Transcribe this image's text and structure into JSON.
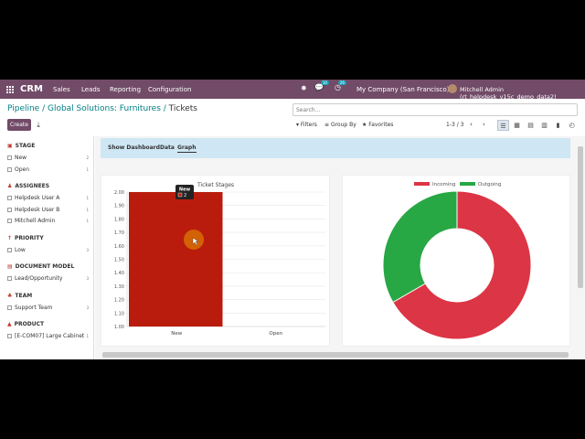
{
  "navbar": {
    "brand": "CRM",
    "menu": [
      "Sales",
      "Leads",
      "Reporting",
      "Configuration"
    ],
    "chat_badge": "10",
    "activity_badge": "26",
    "company": "My Company (San Francisco)",
    "user": "Mitchell Admin (rt_helpdesk_v15c_demo_data2)",
    "bg_color": "#714b67"
  },
  "breadcrumb": {
    "link": "Pipeline / Global Solutions: Furnitures /",
    "current": "Tickets"
  },
  "search": {
    "placeholder": "Search..."
  },
  "toolbar": {
    "create_label": "Create",
    "download_icon": "download-icon",
    "filters": "Filters",
    "group_by": "Group By",
    "favorites": "Favorites",
    "pager": "1-3 / 3",
    "views": [
      "list-view-icon",
      "kanban-view-icon",
      "calendar-view-icon",
      "pivot-view-icon",
      "graph-view-icon",
      "activity-view-icon"
    ]
  },
  "sidebar": {
    "sections": [
      {
        "title": "Stage",
        "icon": "folder-icon",
        "items": [
          {
            "label": "New",
            "count": "2"
          },
          {
            "label": "Open",
            "count": "1"
          }
        ]
      },
      {
        "title": "Assignees",
        "icon": "user-icon",
        "items": [
          {
            "label": "Helpdesk User A",
            "count": "1"
          },
          {
            "label": "Helpdesk User B",
            "count": "1"
          },
          {
            "label": "Mitchell Admin",
            "count": "1"
          }
        ]
      },
      {
        "title": "Priority",
        "icon": "arrow-up-icon",
        "items": [
          {
            "label": "Low",
            "count": "3"
          }
        ]
      },
      {
        "title": "Document Model",
        "icon": "file-icon",
        "items": [
          {
            "label": "Lead/Opportunity",
            "count": "3"
          }
        ]
      },
      {
        "title": "Team",
        "icon": "team-icon",
        "items": [
          {
            "label": "Support Team",
            "count": "3"
          }
        ]
      },
      {
        "title": "Product",
        "icon": "product-icon",
        "items": [
          {
            "label": "[E-COM07] Large Cabinet",
            "count": "1"
          }
        ]
      }
    ]
  },
  "tabs": [
    "Show Dashboard",
    "Data",
    "Graph"
  ],
  "active_tab": "Graph",
  "tooltip": {
    "title": "New",
    "value": "2"
  },
  "chart_data": [
    {
      "type": "bar",
      "title": "Ticket Stages",
      "categories": [
        "New",
        "Open"
      ],
      "values": [
        2,
        1
      ],
      "ylim": [
        1.0,
        2.0
      ],
      "yticks": [
        "2.00",
        "1.90",
        "1.80",
        "1.70",
        "1.60",
        "1.50",
        "1.40",
        "1.30",
        "1.20",
        "1.10",
        "1.00"
      ],
      "grid": true,
      "bar_color": "#b91c0c"
    },
    {
      "type": "pie",
      "labels": [
        "Incoming",
        "Outgoing"
      ],
      "values": [
        2,
        1
      ],
      "colors": [
        "#dc3545",
        "#28a745"
      ],
      "legend": "top",
      "donut": true
    }
  ]
}
